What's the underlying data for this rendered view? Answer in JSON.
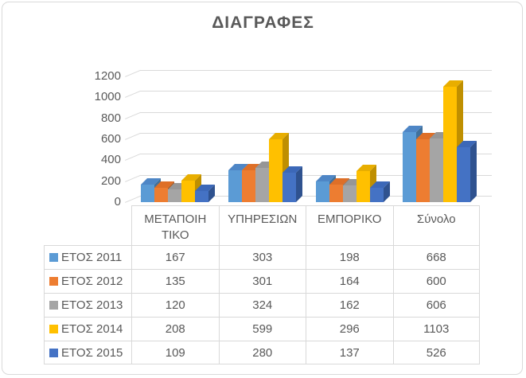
{
  "title": "ΔΙΑΓΡΑΦΕΣ",
  "colors": {
    "text": "#595959",
    "grid": "#D9D9D9",
    "frame_border": "#D9D9D9",
    "series_front": [
      "#5B9BD5",
      "#ED7D31",
      "#A5A5A5",
      "#FFC000",
      "#4472C4"
    ],
    "series_top": [
      "#4E86C6",
      "#DE6F27",
      "#969696",
      "#E8AE00",
      "#3C68B8"
    ],
    "series_side": [
      "#41719C",
      "#AE5A21",
      "#787878",
      "#BF8F00",
      "#2F528F"
    ]
  },
  "chart_data": {
    "type": "bar",
    "style": "3d-clustered-column",
    "title": "ΔΙΑΓΡΑΦΕΣ",
    "categories": [
      "ΜΕΤΑΠΟΙΗΤΙΚΟ",
      "ΥΠΗΡΕΣΙΩΝ",
      "ΕΜΠΟΡΙΚΟ",
      "Σύνολο"
    ],
    "category_display": [
      "ΜΕΤΑΠΟΙΗ\nΤΙΚΟ",
      "ΥΠΗΡΕΣΙΩΝ",
      "ΕΜΠΟΡΙΚΟ",
      "Σύνολο"
    ],
    "series": [
      {
        "name": "ΕΤΟΣ 2011",
        "values": [
          167,
          303,
          198,
          668
        ]
      },
      {
        "name": "ΕΤΟΣ 2012",
        "values": [
          135,
          301,
          164,
          600
        ]
      },
      {
        "name": "ΕΤΟΣ 2013",
        "values": [
          120,
          324,
          162,
          606
        ]
      },
      {
        "name": "ΕΤΟΣ 2014",
        "values": [
          208,
          599,
          296,
          1103
        ]
      },
      {
        "name": "ΕΤΟΣ 2015",
        "values": [
          109,
          280,
          137,
          526
        ]
      }
    ],
    "y_ticks": [
      0,
      200,
      400,
      600,
      800,
      1000,
      1200
    ],
    "ylim": [
      0,
      1200
    ],
    "xlabel": "",
    "ylabel": "",
    "grid": true,
    "legend_position": "data-table-left",
    "data_table": true
  }
}
